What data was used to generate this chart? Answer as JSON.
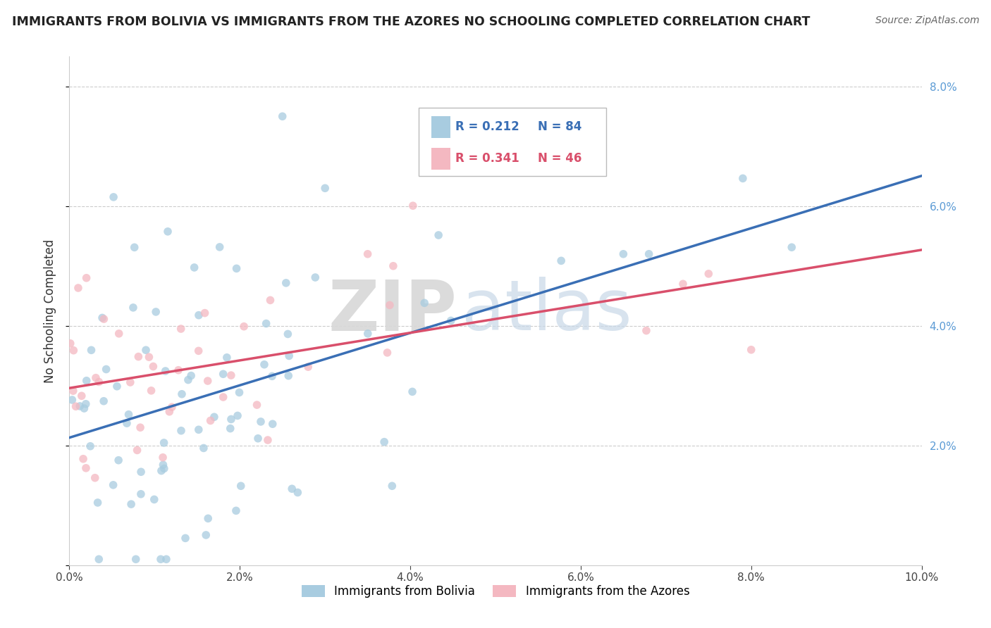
{
  "title": "IMMIGRANTS FROM BOLIVIA VS IMMIGRANTS FROM THE AZORES NO SCHOOLING COMPLETED CORRELATION CHART",
  "source": "Source: ZipAtlas.com",
  "ylabel": "No Schooling Completed",
  "color_bolivia": "#a8cce0",
  "color_azores": "#f4b8c1",
  "color_trendline_bolivia": "#3a6fb5",
  "color_trendline_azores": "#d94f6b",
  "color_ytick": "#5b9bd5",
  "watermark_zip": "ZIP",
  "watermark_atlas": "atlas",
  "legend_R_bolivia": "R = 0.212",
  "legend_N_bolivia": "N = 84",
  "legend_R_azores": "R = 0.341",
  "legend_N_azores": "N = 46"
}
